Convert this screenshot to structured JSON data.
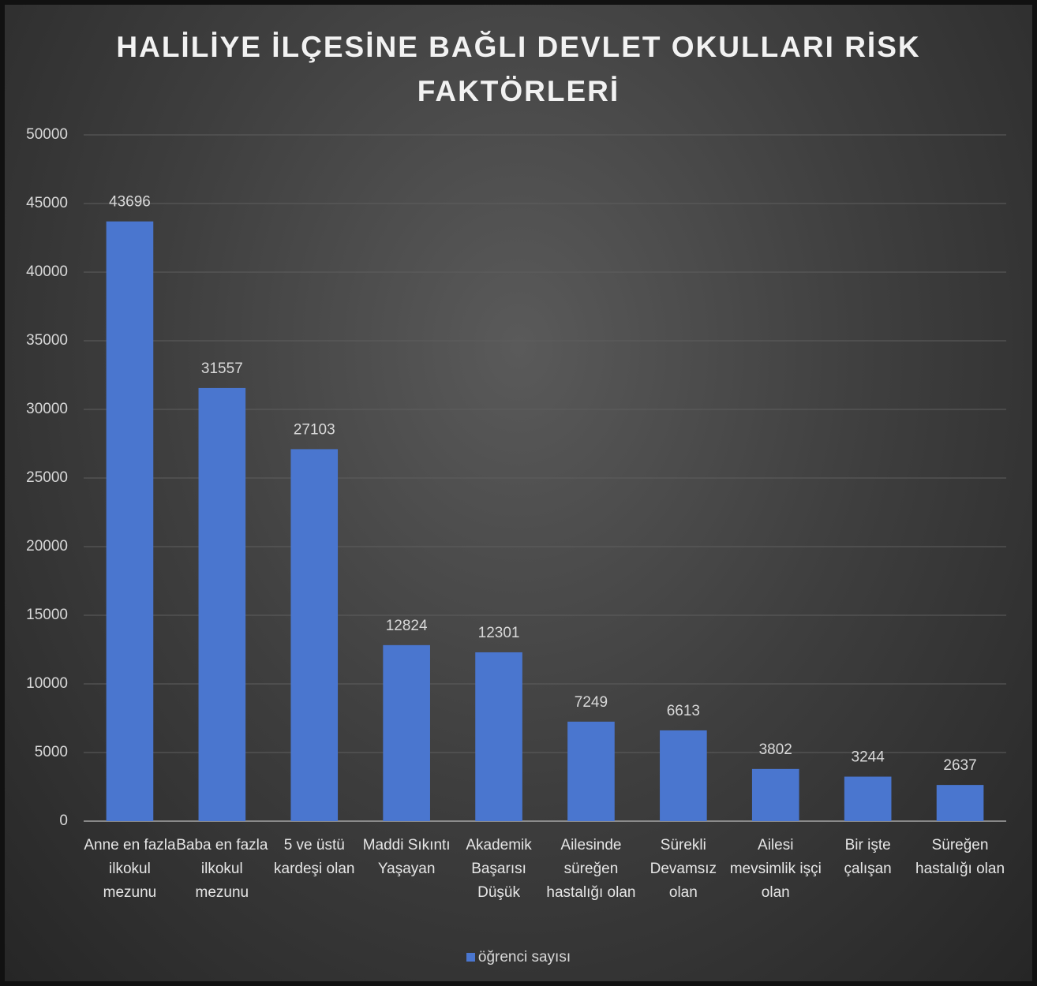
{
  "chart_data": {
    "type": "bar",
    "title": "HALİLİYE İLÇESİNE BAĞLI DEVLET OKULLARI RİSK FAKTÖRLERİ",
    "categories": [
      "Anne en fazla ilkokul mezunu",
      "Baba en fazla ilkokul mezunu",
      "5 ve üstü kardeşi olan",
      "Maddi Sıkıntı Yaşayan",
      "Akademik Başarısı Düşük",
      "Ailesinde süreğen hastalığı olan",
      "Sürekli Devamsız olan",
      "Ailesi mevsimlik işçi olan",
      "Bir işte çalışan",
      "Süreğen hastalığı olan"
    ],
    "series": [
      {
        "name": "öğrenci sayısı",
        "color": "#4a76cf",
        "values": [
          43696,
          31557,
          27103,
          12824,
          12301,
          7249,
          6613,
          3802,
          3244,
          2637
        ]
      }
    ],
    "ylim": [
      0,
      50000
    ],
    "yticks": [
      0,
      5000,
      10000,
      15000,
      20000,
      25000,
      30000,
      35000,
      40000,
      45000,
      50000
    ],
    "grid": true,
    "legend": "bottom"
  }
}
